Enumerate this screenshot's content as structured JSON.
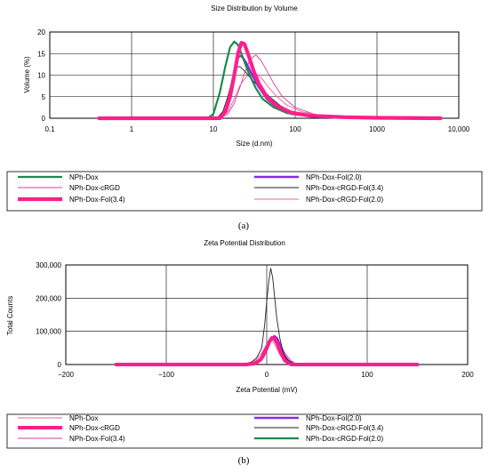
{
  "chart_data": [
    {
      "type": "line",
      "title": "Size Distribution by Volume",
      "xlabel": "Size (d.nm)",
      "ylabel": "Volume (%)",
      "xscale": "log",
      "xlim": [
        0.1,
        10000
      ],
      "ylim": [
        0,
        20
      ],
      "xticks": [
        0.1,
        1,
        10,
        100,
        1000,
        10000
      ],
      "xtick_labels": [
        "0.1",
        "1",
        "10",
        "100",
        "1000",
        "10,000"
      ],
      "yticks": [
        0,
        5,
        10,
        15,
        20
      ],
      "ytick_labels": [
        "0",
        "5",
        "10",
        "15",
        "20"
      ],
      "grid": true,
      "legend_position": "bottom",
      "panel_label": "(a)",
      "series": [
        {
          "name": "NPh-Dox",
          "color": "#1a8a4a",
          "width": 2.2,
          "x": [
            0.4,
            8.5,
            10,
            12,
            14,
            16,
            18,
            20,
            23,
            27,
            33,
            40,
            55,
            80,
            150,
            300,
            1000,
            4000,
            6000
          ],
          "y": [
            0,
            0,
            1,
            6,
            12,
            16.5,
            17.8,
            17,
            14,
            10.5,
            7,
            4.5,
            2.5,
            1.2,
            0.5,
            0.2,
            0.1,
            0.05,
            0
          ]
        },
        {
          "name": "NPh-Dox-cRGD",
          "color": "#d0409a",
          "width": 0.9,
          "x": [
            0.4,
            12,
            15,
            18,
            21,
            24,
            28,
            33,
            38,
            45,
            55,
            70,
            100,
            200,
            6000
          ],
          "y": [
            0,
            0,
            1,
            3.5,
            7,
            10.5,
            13.5,
            14.7,
            13.5,
            11,
            8,
            5,
            2.5,
            0.5,
            0
          ]
        },
        {
          "name": "NPh-Dox-Fol(3.4)",
          "color": "#ff1e8a",
          "width": 4.2,
          "x": [
            0.4,
            12,
            14,
            16,
            18,
            20,
            22,
            24,
            27,
            31,
            36,
            45,
            60,
            90,
            150,
            400,
            1000,
            6000
          ],
          "y": [
            0,
            0,
            1.5,
            5,
            10,
            15,
            17.5,
            17.2,
            14.5,
            11,
            8,
            5,
            2.8,
            1.3,
            0.6,
            0.25,
            0.1,
            0
          ]
        },
        {
          "name": "NPh-Dox-Fol(2.0)",
          "color": "#8a2be2",
          "width": 2.4,
          "x": [
            0.4,
            12,
            14,
            16,
            18,
            20,
            22,
            25,
            29,
            35,
            45,
            60,
            90,
            200,
            600,
            6000
          ],
          "y": [
            0,
            0,
            1.5,
            6,
            11,
            14.2,
            14.5,
            13,
            10.5,
            7.5,
            4.5,
            2.5,
            1,
            0.3,
            0.1,
            0
          ]
        },
        {
          "name": "NPh-Dox-cRGD-Fol(3.4)",
          "color": "#222222",
          "width": 0.9,
          "x": [
            0.4,
            11,
            13,
            15,
            17,
            19,
            21,
            24,
            28,
            33,
            40,
            50,
            65,
            90,
            150,
            400,
            6000
          ],
          "y": [
            0,
            0,
            1.5,
            5,
            9,
            11.8,
            12,
            11,
            9.5,
            8,
            6.5,
            4.8,
            3,
            1.5,
            0.6,
            0.2,
            0
          ]
        },
        {
          "name": "NPh-Dox-cRGD-Fol(2.0)",
          "color": "#e8609f",
          "width": 0.9,
          "x": [
            0.4,
            12,
            15,
            18,
            21,
            25,
            29,
            34,
            40,
            48,
            60,
            80,
            120,
            250,
            6000
          ],
          "y": [
            0,
            0,
            1.5,
            4.5,
            7.5,
            9.5,
            10.5,
            10.2,
            9,
            7,
            5,
            3,
            1.5,
            0.4,
            0
          ]
        }
      ]
    },
    {
      "type": "line",
      "title": "Zeta Potential Distribution",
      "xlabel": "Zeta Potential (mV)",
      "ylabel": "Total Counts",
      "xlim": [
        -200,
        200
      ],
      "ylim": [
        0,
        300000
      ],
      "xticks": [
        -200,
        -100,
        0,
        100,
        200
      ],
      "xtick_labels": [
        "−200",
        "−100",
        "0",
        "100",
        "200"
      ],
      "yticks": [
        0,
        100000,
        200000,
        300000
      ],
      "ytick_labels": [
        "0",
        "100,000",
        "200,000",
        "300,000"
      ],
      "grid": true,
      "legend_position": "bottom",
      "panel_label": "(b)",
      "series": [
        {
          "name": "NPh-Dox",
          "color": "#e8609f",
          "width": 0.9,
          "x": [
            -150,
            -22,
            -15,
            -10,
            -5,
            0,
            3,
            6,
            9,
            13,
            18,
            25,
            150
          ],
          "y": [
            0,
            0,
            5000,
            15000,
            35000,
            60000,
            72000,
            70000,
            55000,
            30000,
            10000,
            0,
            0
          ]
        },
        {
          "name": "NPh-Dox-cRGD",
          "color": "#ff1e8a",
          "width": 4.0,
          "x": [
            -150,
            -20,
            -12,
            -6,
            -2,
            2,
            5,
            8,
            11,
            14,
            18,
            24,
            150
          ],
          "y": [
            0,
            0,
            3000,
            15000,
            38000,
            65000,
            80000,
            78000,
            60000,
            35000,
            12000,
            0,
            0
          ]
        },
        {
          "name": "NPh-Dox-Fol(3.4)",
          "color": "#d0409a",
          "width": 0.9,
          "x": [
            -150,
            -15,
            -8,
            -3,
            1,
            5,
            8,
            11,
            14,
            18,
            24,
            30,
            150
          ],
          "y": [
            0,
            0,
            5000,
            20000,
            45000,
            75000,
            88000,
            80000,
            60000,
            35000,
            12000,
            0,
            0
          ]
        },
        {
          "name": "NPh-Dox-Fol(2.0)",
          "color": "#8a2be2",
          "width": 2.4,
          "x": [
            -150,
            -18,
            -10,
            -5,
            0,
            4,
            7,
            10,
            13,
            17,
            22,
            28,
            150
          ],
          "y": [
            0,
            0,
            4000,
            18000,
            45000,
            75000,
            85000,
            80000,
            60000,
            30000,
            10000,
            0,
            0
          ]
        },
        {
          "name": "NPh-Dox-cRGD-Fol(3.4)",
          "color": "#222222",
          "width": 0.9,
          "x": [
            -150,
            -25,
            -15,
            -10,
            -5,
            -2,
            0,
            2,
            4,
            6,
            8,
            10,
            13,
            16,
            20,
            25,
            32,
            150
          ],
          "y": [
            0,
            0,
            8000,
            20000,
            50000,
            120000,
            190000,
            250000,
            290000,
            260000,
            200000,
            140000,
            80000,
            40000,
            15000,
            5000,
            0,
            0
          ]
        },
        {
          "name": "NPh-Dox-cRGD-Fol(2.0)",
          "color": "#1a8a4a",
          "width": 2.2,
          "x": [
            -150,
            -18,
            -10,
            -5,
            -1,
            2,
            5,
            8,
            11,
            14,
            18,
            24,
            150
          ],
          "y": [
            0,
            0,
            5000,
            20000,
            45000,
            70000,
            80000,
            72000,
            55000,
            30000,
            10000,
            0,
            0
          ]
        }
      ]
    }
  ]
}
